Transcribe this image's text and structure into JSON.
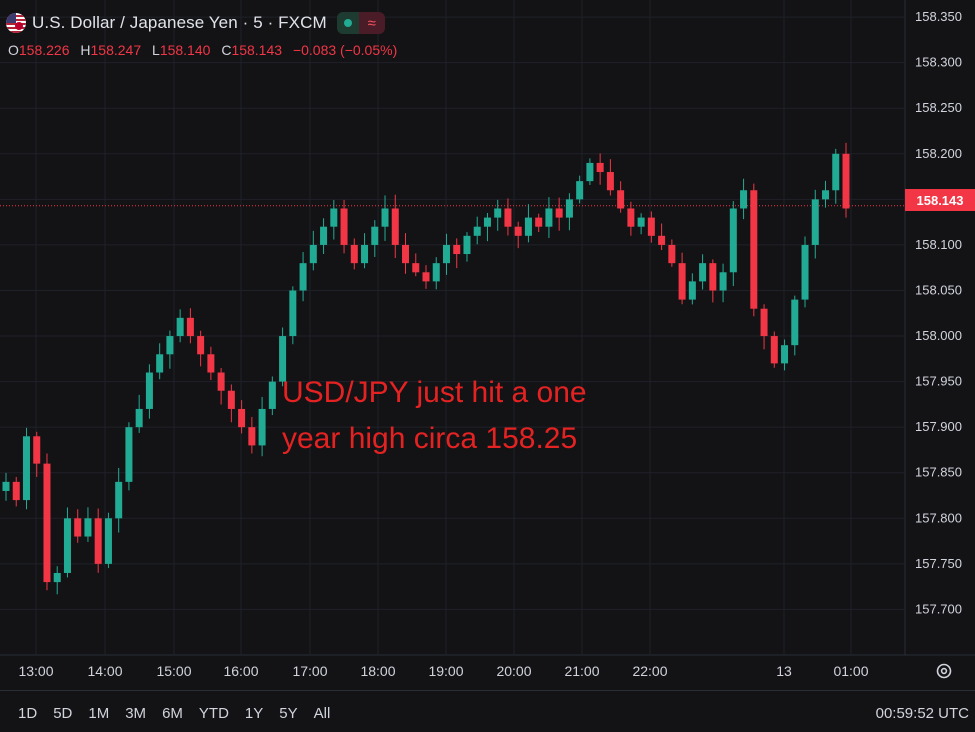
{
  "header": {
    "symbol_title": "U.S. Dollar / Japanese Yen · 5 · FXCM",
    "ohlc": [
      {
        "k": "O",
        "v": "158.226"
      },
      {
        "k": "H",
        "v": "158.247"
      },
      {
        "k": "L",
        "v": "158.140"
      },
      {
        "k": "C",
        "v": "158.143"
      }
    ],
    "change": "−0.083 (−0.05%)",
    "wave_glyph": "≈"
  },
  "price_label": "158.143",
  "annotation": "USD/JPY just hit a one year high circa 158.25",
  "bottom": {
    "ranges": [
      "1D",
      "5D",
      "1M",
      "3M",
      "6M",
      "YTD",
      "1Y",
      "5Y",
      "All"
    ],
    "clock": "00:59:52 UTC"
  },
  "colors": {
    "up": "#22ab94",
    "down": "#f23645",
    "bg": "#131316",
    "grid": "#1f2129",
    "text": "#d1d4dc",
    "annotation": "#e52222"
  },
  "chart_data": {
    "type": "candlestick",
    "title": "U.S. Dollar / Japanese Yen · 5 · FXCM",
    "ylim": [
      157.65,
      158.36
    ],
    "y_ticks": [
      "158.350",
      "158.300",
      "158.250",
      "158.200",
      "158.150",
      "158.100",
      "158.050",
      "158.000",
      "157.950",
      "157.900",
      "157.850",
      "157.800",
      "157.750",
      "157.700"
    ],
    "x_ticks": [
      "13:00",
      "14:00",
      "15:00",
      "16:00",
      "17:00",
      "18:00",
      "19:00",
      "20:00",
      "21:00",
      "22:00",
      "13",
      "01:00"
    ],
    "last_price": 158.143,
    "grid": true,
    "closes": [
      157.84,
      157.82,
      157.89,
      157.86,
      157.73,
      157.74,
      157.8,
      157.78,
      157.8,
      157.75,
      157.8,
      157.84,
      157.9,
      157.92,
      157.96,
      157.98,
      158.0,
      158.02,
      158.0,
      157.98,
      157.96,
      157.94,
      157.92,
      157.9,
      157.88,
      157.92,
      157.95,
      158.0,
      158.05,
      158.08,
      158.1,
      158.12,
      158.14,
      158.1,
      158.08,
      158.1,
      158.12,
      158.14,
      158.1,
      158.08,
      158.07,
      158.06,
      158.08,
      158.1,
      158.09,
      158.11,
      158.12,
      158.13,
      158.14,
      158.12,
      158.11,
      158.13,
      158.12,
      158.14,
      158.13,
      158.15,
      158.17,
      158.19,
      158.18,
      158.16,
      158.14,
      158.12,
      158.13,
      158.11,
      158.1,
      158.08,
      158.04,
      158.06,
      158.08,
      158.05,
      158.07,
      158.14,
      158.16,
      158.03,
      158.0,
      157.97,
      157.99,
      158.04,
      158.1,
      158.15,
      158.16,
      158.2,
      158.14
    ],
    "annotations": [
      "USD/JPY just hit a one year high circa 158.25"
    ]
  }
}
